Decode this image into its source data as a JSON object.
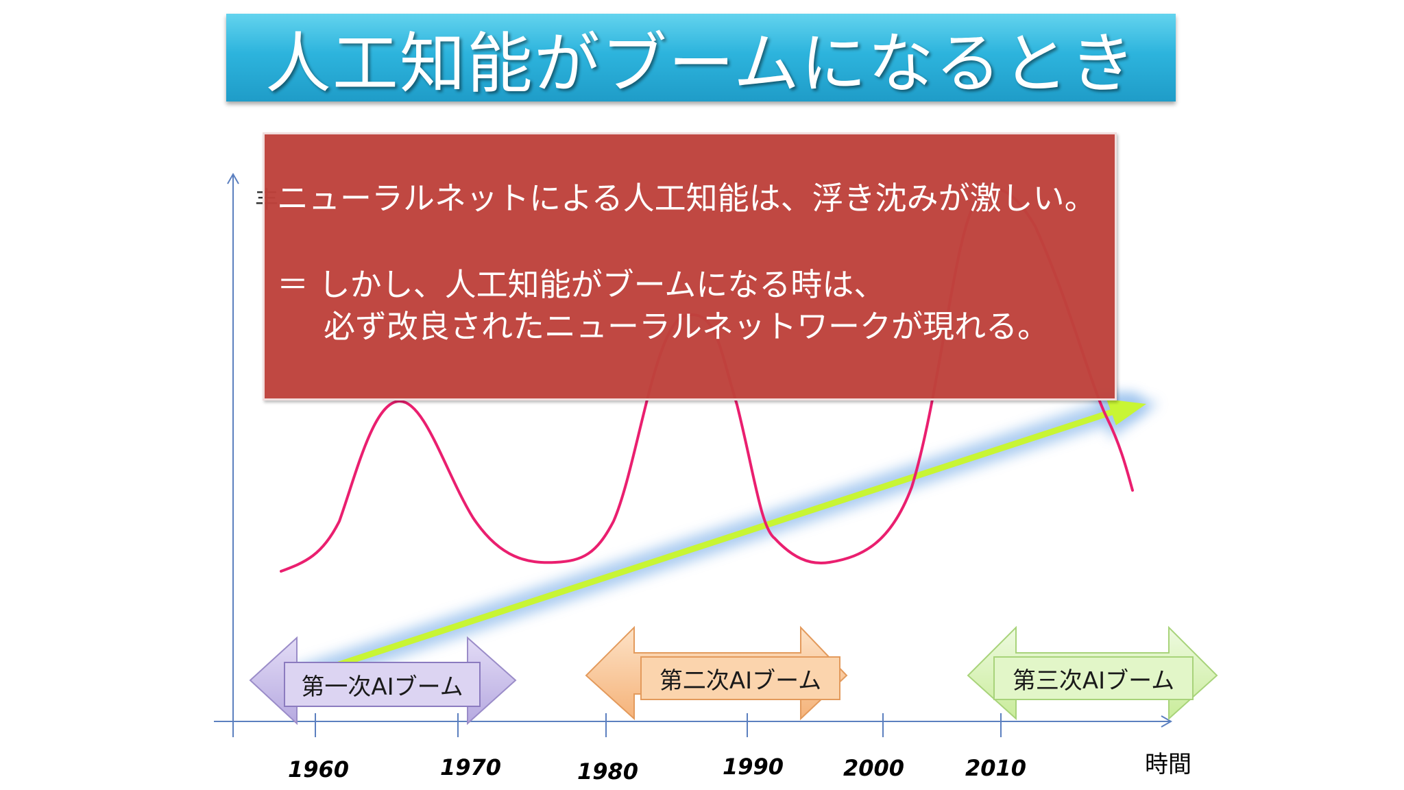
{
  "title": "人工知能がブームになるとき",
  "callout": {
    "line1": "ニューラルネットによる人工知能は、浮き沈みが激しい。",
    "line2": "＝ しかし、人工知能がブームになる時は、",
    "line3": "必ず改良されたニューラルネットワークが現れる。"
  },
  "y_axis_fragment": "丰",
  "x_axis_label": "時間",
  "years": [
    "1960",
    "1970",
    "1980",
    "1990",
    "2000",
    "2010"
  ],
  "booms": [
    {
      "label": "第一次AIブーム",
      "color": "#c9bfe8"
    },
    {
      "label": "第二次AIブーム",
      "color": "#f8c79a"
    },
    {
      "label": "第三次AIブーム",
      "color": "#d6f0b0"
    }
  ],
  "colors": {
    "curve": "#ea1f6f",
    "trend_arrow": "#c8f534",
    "trend_glow": "#9ec4ee",
    "axis": "#5b7fbf"
  }
}
